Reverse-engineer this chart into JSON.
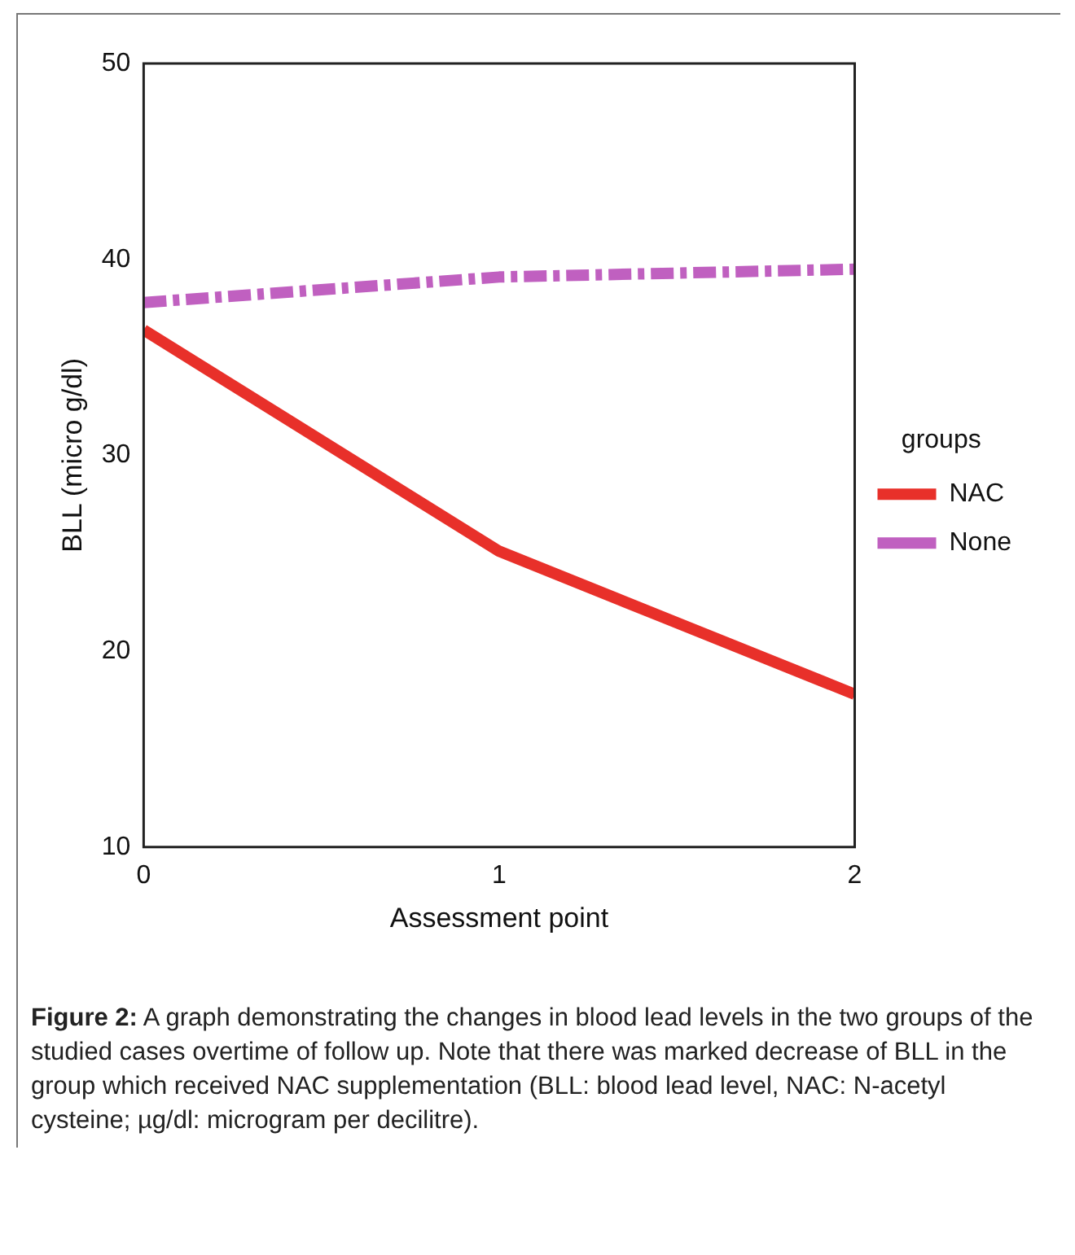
{
  "chart_data": {
    "type": "line",
    "xlabel": "Assessment point",
    "ylabel": "BLL (micro g/dl)",
    "legend_title": "groups",
    "x": [
      0,
      1,
      2
    ],
    "series": [
      {
        "name": "NAC",
        "color": "#e8302a",
        "values": [
          36.4,
          25.1,
          17.8
        ],
        "line_style": "solid"
      },
      {
        "name": "None",
        "color": "#c060c0",
        "values": [
          37.8,
          39.1,
          39.5
        ],
        "line_style": "dashed"
      }
    ],
    "xlim": [
      0,
      2
    ],
    "xticks": [
      0,
      1,
      2
    ],
    "ylim": [
      10,
      50
    ],
    "yticks": [
      10,
      20,
      30,
      40,
      50
    ],
    "grid": false,
    "legend": "right",
    "marker": "none",
    "annotations": [
      "Figure 2: A graph demonstrating the changes in blood lead levels in the two groups of the studied cases overtime of follow up. Note that there was marked decrease of BLL in the group which received NAC supplementation (BLL: blood lead level, NAC: N-acetyl cysteine; µg/dl: microgram per decilitre)."
    ]
  }
}
